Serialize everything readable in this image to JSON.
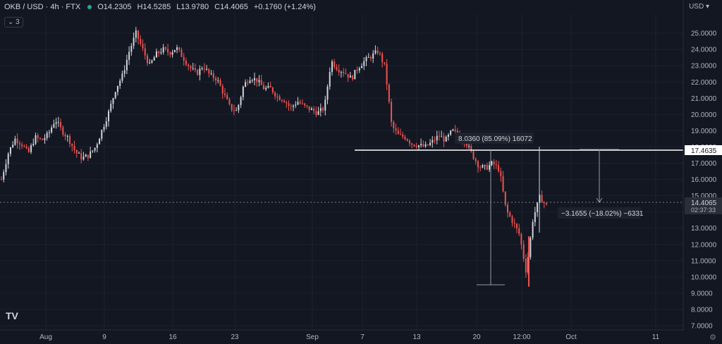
{
  "header": {
    "symbol": "OKB / USD · 4h · FTX",
    "open": "O14.2305",
    "high": "H14.5285",
    "low": "L13.9780",
    "close": "C14.4065",
    "change": "+0.1760 (+1.24%)"
  },
  "indicator_badge": "3",
  "currency": "USD",
  "logo_text": "TV",
  "price_labels": {
    "line": "17.4635",
    "last": "14.4065",
    "countdown": "02:37:33"
  },
  "measure_labels": {
    "up": "8.0360 (85.09%) 16072",
    "down": "−3.1655 (−18.02%) −6331"
  },
  "colors": {
    "up": "#d1d4dc",
    "down": "#ef5350",
    "bg": "#131722",
    "grid": "#1c2030"
  },
  "chart_data": {
    "type": "line",
    "title": "",
    "xlabel": "",
    "ylabel": "",
    "y_ticks": [
      "7.0000",
      "8.0000",
      "9.0000",
      "10.0000",
      "11.0000",
      "12.0000",
      "13.0000",
      "14.0000",
      "15.0000",
      "16.0000",
      "17.0000",
      "18.0000",
      "19.0000",
      "20.0000",
      "21.0000",
      "22.0000",
      "23.0000",
      "24.0000",
      "25.0000"
    ],
    "x_ticks": [
      "Aug",
      "9",
      "16",
      "23",
      "Sep",
      "7",
      "13",
      "20",
      "12:00",
      "Oct",
      "11"
    ],
    "ylim": [
      7,
      25.5
    ],
    "series": [
      {
        "values": [
          16.0,
          17.6,
          18.5,
          18.2,
          17.6,
          18.6,
          18.4,
          18.8,
          19.7,
          19.0,
          18.5,
          17.7,
          17.3,
          17.5,
          18.0,
          19.1,
          20.2,
          21.6,
          22.4,
          23.9,
          25.0,
          24.0,
          23.0,
          23.7,
          24.0,
          23.8,
          24.1,
          23.5,
          22.9,
          22.5,
          23.0,
          22.4,
          22.2,
          21.3,
          20.4,
          20.2,
          21.8,
          22.3,
          22.1,
          21.6,
          21.6,
          21.1,
          20.9,
          20.4,
          20.8,
          20.5,
          20.3,
          20.1,
          20.4,
          23.3,
          22.8,
          22.6,
          22.2,
          22.9,
          23.3,
          23.6,
          23.9,
          22.9,
          19.3,
          18.7,
          18.6,
          18.2,
          18.1,
          18.0,
          18.3,
          18.7,
          18.4,
          19.0,
          18.7,
          18.3,
          17.5,
          16.8,
          16.7,
          17.0,
          16.6,
          14.1,
          13.4,
          12.6,
          10.3,
          13.6,
          14.9,
          14.4
        ]
      }
    ],
    "annotations": [
      {
        "type": "hline",
        "value": 17.4635
      },
      {
        "type": "hline",
        "value": 14.4065,
        "style": "dotted"
      },
      {
        "type": "range",
        "label": "8.0360 (85.09%) 16072"
      },
      {
        "type": "range",
        "label": "−3.1655 (−18.02%) −6331"
      }
    ]
  }
}
